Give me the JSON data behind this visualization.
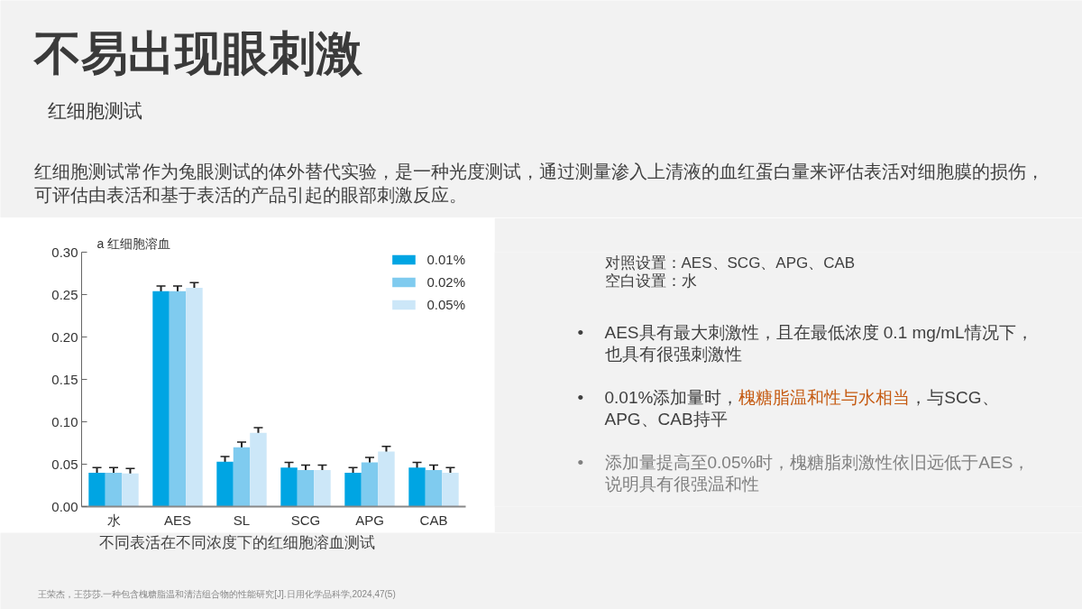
{
  "chart_data": {
    "type": "bar",
    "title": "不易出现眼刺激",
    "subtitle": "红细胞测试",
    "categories": [
      "水",
      "AES",
      "SL",
      "SCG",
      "APG",
      "CAB"
    ],
    "series": [
      {
        "name": "0.01%",
        "color": "#00a5e3",
        "values": [
          0.04,
          0.254,
          0.053,
          0.046,
          0.04,
          0.046
        ],
        "errors": [
          0.006,
          0.006,
          0.006,
          0.006,
          0.006,
          0.006
        ]
      },
      {
        "name": "0.02%",
        "color": "#7fcbef",
        "values": [
          0.04,
          0.254,
          0.07,
          0.043,
          0.052,
          0.043
        ],
        "errors": [
          0.006,
          0.006,
          0.006,
          0.006,
          0.006,
          0.006
        ]
      },
      {
        "name": "0.05%",
        "color": "#cce7f8",
        "values": [
          0.039,
          0.258,
          0.087,
          0.043,
          0.065,
          0.04
        ],
        "errors": [
          0.006,
          0.006,
          0.006,
          0.006,
          0.006,
          0.006
        ]
      }
    ],
    "ylim": [
      0,
      0.3
    ],
    "yticks": [
      {
        "value": 0,
        "label": "0.00"
      },
      0.05,
      {
        "value": 0.1,
        "label": "0.10"
      },
      0.15,
      {
        "value": 0.2,
        "label": "0.20"
      },
      0.25,
      {
        "value": 0.3,
        "label": "0.30"
      }
    ],
    "legend": "top right",
    "annotations": [
      "a 红细胞溶血",
      "不同表活在不同浓度下的红细胞溶血测试",
      "红细胞测试常作为兔眼测试的体外替代实验，是一种光度测试，通过测量渗入上清液的血红蛋白量来评估表活对细胞膜的损伤，",
      "可评估由表活和基于表活的产品引起的眼部刺激反应。",
      "对照设置：AES、SCG、APG、CAB",
      "空白设置：水",
      "•",
      "AES具有最大刺激性，且在最低浓度 0.1 mg/mL情况下，",
      "也具有很强刺激性",
      "•",
      "0.01%添加量时，",
      "槐糖脂温和性与水相当",
      "，与SCG、",
      "APG、CAB持平",
      "•",
      "添加量提高至0.05%时，槐糖脂刺激性依旧远低于AES，",
      "说明具有很强温和性",
      "王荣杰，王莎莎.一种包含槐糖脂温和清洁组合物的性能研究[J].日用化学品科学,2024,47(5)"
    ]
  }
}
